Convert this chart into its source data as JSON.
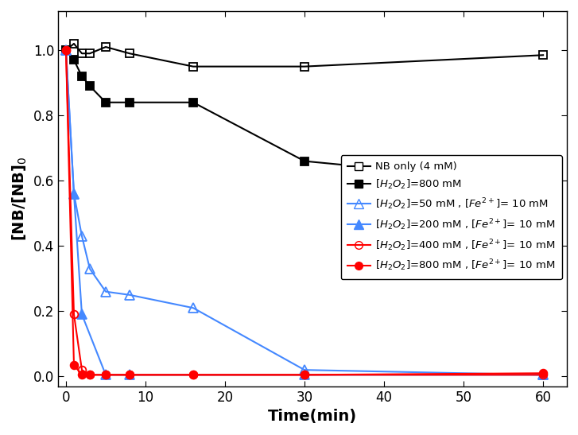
{
  "series": [
    {
      "label": "NB only (4 mM)",
      "x": [
        0,
        1,
        2,
        3,
        5,
        8,
        16,
        30,
        60
      ],
      "y": [
        1.0,
        1.02,
        0.99,
        0.99,
        1.01,
        0.99,
        0.95,
        0.95,
        0.985
      ],
      "color": "black",
      "marker": "s",
      "fillstyle": "none",
      "linestyle": "-",
      "linewidth": 1.5,
      "markersize": 7
    },
    {
      "label": "[H2O2]=800 mM",
      "x": [
        0,
        1,
        2,
        3,
        5,
        8,
        16,
        30,
        60
      ],
      "y": [
        1.0,
        0.97,
        0.92,
        0.89,
        0.84,
        0.84,
        0.84,
        0.66,
        0.59
      ],
      "color": "black",
      "marker": "s",
      "fillstyle": "full",
      "linestyle": "-",
      "linewidth": 1.5,
      "markersize": 7
    },
    {
      "label": "[H2O2]=50 mM , [Fe2+]= 10 mM",
      "x": [
        0,
        1,
        2,
        3,
        5,
        8,
        16,
        30,
        60
      ],
      "y": [
        1.0,
        0.56,
        0.43,
        0.33,
        0.26,
        0.25,
        0.21,
        0.02,
        0.005
      ],
      "color": "#4488ff",
      "marker": "^",
      "fillstyle": "none",
      "linestyle": "-",
      "linewidth": 1.5,
      "markersize": 8
    },
    {
      "label": "[H2O2]=200 mM , [Fe2+]= 10 mM",
      "x": [
        0,
        1,
        2,
        5,
        8,
        30,
        60
      ],
      "y": [
        1.0,
        0.56,
        0.19,
        0.005,
        0.005,
        0.005,
        0.005
      ],
      "color": "#4488ff",
      "marker": "^",
      "fillstyle": "full",
      "linestyle": "-",
      "linewidth": 1.5,
      "markersize": 8
    },
    {
      "label": "[H2O2]=400 mM , [Fe2+]= 10 mM",
      "x": [
        0,
        1,
        2,
        3,
        5,
        8,
        16,
        30,
        60
      ],
      "y": [
        1.0,
        0.19,
        0.02,
        0.005,
        0.005,
        0.005,
        0.005,
        0.005,
        0.005
      ],
      "color": "red",
      "marker": "o",
      "fillstyle": "none",
      "linestyle": "-",
      "linewidth": 1.5,
      "markersize": 7
    },
    {
      "label": "[H2O2]=800 mM , [Fe2+]= 10 mM",
      "x": [
        0,
        1,
        2,
        3,
        5,
        8,
        16,
        30,
        60
      ],
      "y": [
        1.0,
        0.035,
        0.005,
        0.005,
        0.005,
        0.005,
        0.005,
        0.005,
        0.01
      ],
      "color": "red",
      "marker": "o",
      "fillstyle": "full",
      "linestyle": "-",
      "linewidth": 1.5,
      "markersize": 7
    }
  ],
  "legend_labels": [
    "NB only (4 mM)",
    "$[H_2O_2]$=800 mM",
    "$[H_2O_2]$=50 mM , $[Fe^{2+}]$= 10 mM",
    "$[H_2O_2]$=200 mM , $[Fe^{2+}]$= 10 mM",
    "$[H_2O_2]$=400 mM , $[Fe^{2+}]$= 10 mM",
    "$[H_2O_2]$=800 mM , $[Fe^{2+}]$= 10 mM"
  ],
  "xlabel": "Time(min)",
  "ylabel": "[NB/[NB]$_0$",
  "xlim": [
    -1,
    63
  ],
  "ylim": [
    -0.03,
    1.12
  ],
  "xticks": [
    0,
    10,
    20,
    30,
    40,
    50,
    60
  ],
  "yticks": [
    0.0,
    0.2,
    0.4,
    0.6,
    0.8,
    1.0
  ]
}
